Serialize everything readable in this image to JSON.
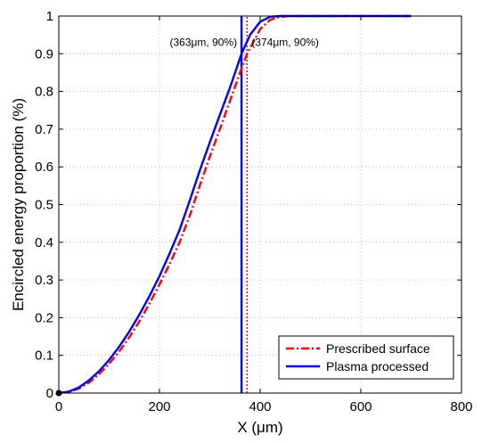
{
  "chart_data": {
    "type": "line",
    "title": "",
    "xlabel": "X (μm)",
    "ylabel": "Encircled energy proportion (%)",
    "xlim": [
      0,
      800
    ],
    "ylim": [
      0,
      1
    ],
    "x_ticks": [
      "0",
      "200",
      "400",
      "600",
      "800"
    ],
    "y_ticks": [
      "0",
      "0.1",
      "0.2",
      "0.3",
      "0.4",
      "0.5",
      "0.6",
      "0.7",
      "0.8",
      "0.9",
      "1"
    ],
    "grid": true,
    "legend_position": "bottom-right",
    "series": [
      {
        "name": "Prescribed surface",
        "color": "#ff0000",
        "line_style": "dash-dot",
        "x": [
          0,
          20,
          40,
          60,
          80,
          100,
          120,
          140,
          160,
          180,
          200,
          220,
          240,
          260,
          280,
          300,
          320,
          340,
          360,
          374,
          380,
          400,
          420,
          440,
          460,
          500,
          600,
          700
        ],
        "y": [
          0,
          0.003,
          0.012,
          0.028,
          0.05,
          0.078,
          0.11,
          0.148,
          0.19,
          0.237,
          0.288,
          0.342,
          0.4,
          0.47,
          0.55,
          0.627,
          0.7,
          0.775,
          0.85,
          0.9,
          0.915,
          0.965,
          0.99,
          0.998,
          1,
          1,
          1,
          1
        ]
      },
      {
        "name": "Plasma processed",
        "color": "#0000ff",
        "line_style": "solid",
        "x": [
          0,
          20,
          40,
          60,
          80,
          100,
          120,
          140,
          160,
          180,
          200,
          220,
          240,
          260,
          280,
          300,
          320,
          340,
          363,
          380,
          400,
          420,
          440,
          460,
          500,
          600,
          700
        ],
        "y": [
          0,
          0.004,
          0.015,
          0.034,
          0.058,
          0.088,
          0.123,
          0.163,
          0.208,
          0.257,
          0.31,
          0.37,
          0.433,
          0.51,
          0.59,
          0.665,
          0.738,
          0.81,
          0.9,
          0.95,
          0.985,
          0.998,
          1,
          1,
          1,
          1,
          1
        ]
      }
    ],
    "markers": [
      {
        "series": "Plasma processed",
        "x": 363,
        "y_from": 0,
        "y_to": 1,
        "color": "#0000ff",
        "style": "solid"
      },
      {
        "series": "Prescribed surface",
        "x": 374,
        "y_from": 0,
        "y_to": 1,
        "color": "#ff0000",
        "style": "dotted"
      }
    ],
    "annotations": [
      {
        "text": "(363μm, 90%)",
        "x": 363,
        "y": 0.9,
        "anchor": "end"
      },
      {
        "text": "(374μm, 90%)",
        "x": 374,
        "y": 0.9,
        "anchor": "start"
      }
    ]
  }
}
